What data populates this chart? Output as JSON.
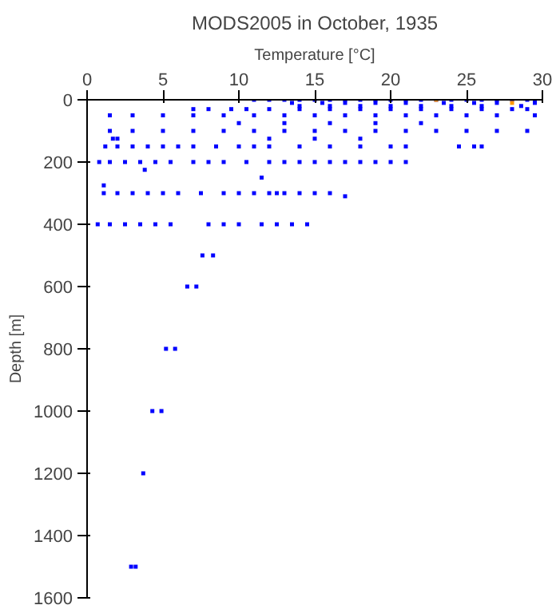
{
  "chart_data": {
    "type": "scatter",
    "title": "MODS2005 in October, 1935",
    "xlabel": "Temperature [°C]",
    "ylabel": "Depth [m]",
    "xlim": [
      0,
      30
    ],
    "xticks": [
      0,
      5,
      10,
      15,
      20,
      25,
      30
    ],
    "ylim": [
      1600,
      0
    ],
    "yticks": [
      0,
      200,
      400,
      600,
      800,
      1000,
      1200,
      1400,
      1600
    ],
    "grid": false,
    "marker": "square",
    "series": [
      {
        "color": "#0000ff",
        "x": [
          11,
          12,
          13,
          14,
          15,
          16,
          17,
          18,
          19,
          20,
          21,
          22,
          23,
          24,
          25,
          26,
          27,
          28,
          29,
          29.5
        ],
        "values": [
          0,
          0,
          0,
          0,
          0,
          0,
          0,
          0,
          0,
          0,
          0,
          0,
          0,
          0,
          0,
          0,
          0,
          0,
          0,
          0
        ]
      },
      {
        "color": "#0000ff",
        "x": [
          13.5,
          15.5,
          17,
          19,
          21,
          23.5,
          25.5,
          27,
          29.5
        ],
        "values": [
          10,
          10,
          10,
          10,
          10,
          10,
          10,
          10,
          10
        ]
      },
      {
        "color": "#0000ff",
        "x": [
          14,
          16,
          18,
          20,
          22,
          24,
          26,
          28.6
        ],
        "values": [
          20,
          20,
          20,
          20,
          20,
          20,
          20,
          20
        ]
      },
      {
        "color": "#0000ff",
        "x": [
          7,
          8,
          9.5,
          10.5,
          12,
          14,
          16,
          18,
          20,
          22,
          24,
          26,
          28,
          29
        ],
        "values": [
          30,
          30,
          30,
          30,
          30,
          30,
          30,
          30,
          30,
          30,
          30,
          30,
          30,
          30
        ]
      },
      {
        "color": "#0000ff",
        "x": [
          1.5,
          3,
          5,
          7,
          9,
          11,
          13,
          15,
          17,
          19,
          21,
          23,
          25,
          27,
          29.5
        ],
        "values": [
          50,
          50,
          50,
          50,
          50,
          50,
          50,
          50,
          50,
          50,
          50,
          50,
          50,
          50,
          50
        ]
      },
      {
        "color": "#0000ff",
        "x": [
          10,
          13,
          16,
          19,
          22
        ],
        "values": [
          75,
          75,
          75,
          75,
          75
        ]
      },
      {
        "color": "#0000ff",
        "x": [
          1.5,
          3,
          5,
          7,
          9,
          11,
          13,
          15,
          17,
          19,
          21,
          23,
          25,
          27,
          29
        ],
        "values": [
          100,
          100,
          100,
          100,
          100,
          100,
          100,
          100,
          100,
          100,
          100,
          100,
          100,
          100,
          100
        ]
      },
      {
        "color": "#0000ff",
        "x": [
          1.7,
          2,
          12,
          15,
          18
        ],
        "values": [
          125,
          125,
          125,
          125,
          125
        ]
      },
      {
        "color": "#0000ff",
        "x": [
          1.2,
          2,
          3,
          4,
          5,
          6,
          7,
          8.5,
          10,
          11,
          12,
          14,
          16,
          18,
          20,
          21,
          24.5,
          25.5,
          26
        ],
        "values": [
          150,
          150,
          150,
          150,
          150,
          150,
          150,
          150,
          150,
          150,
          150,
          150,
          150,
          150,
          150,
          150,
          150,
          150,
          150
        ]
      },
      {
        "color": "#0000ff",
        "x": [
          0.8,
          1.5,
          2.5,
          3.5,
          4.5,
          5.5,
          7,
          8,
          9,
          10.5,
          12,
          13,
          14,
          15,
          16,
          17,
          18,
          19,
          20,
          21
        ],
        "values": [
          200,
          200,
          200,
          200,
          200,
          200,
          200,
          200,
          200,
          200,
          200,
          200,
          200,
          200,
          200,
          200,
          200,
          200,
          200,
          200
        ]
      },
      {
        "color": "#0000ff",
        "x": [
          3.8,
          11.5,
          1.1
        ],
        "values": [
          225,
          250,
          275
        ]
      },
      {
        "color": "#0000ff",
        "x": [
          1.1,
          2,
          3,
          4,
          5,
          6,
          7.5,
          9,
          10,
          11,
          12,
          12.5,
          13,
          14,
          15,
          16
        ],
        "values": [
          300,
          300,
          300,
          300,
          300,
          300,
          300,
          300,
          300,
          300,
          300,
          300,
          300,
          300,
          300,
          300
        ]
      },
      {
        "color": "#0000ff",
        "x": [
          17
        ],
        "values": [
          310
        ]
      },
      {
        "color": "#0000ff",
        "x": [
          0.7,
          1.5,
          2.5,
          3.5,
          4.5,
          5.5,
          8,
          9,
          10,
          11.5,
          12.5,
          13.5,
          14.5
        ],
        "values": [
          400,
          400,
          400,
          400,
          400,
          400,
          400,
          400,
          400,
          400,
          400,
          400,
          400
        ]
      },
      {
        "color": "#0000ff",
        "x": [
          7.6,
          8.3
        ],
        "values": [
          500,
          500
        ]
      },
      {
        "color": "#0000ff",
        "x": [
          6.6,
          7.2
        ],
        "values": [
          600,
          600
        ]
      },
      {
        "color": "#0000ff",
        "x": [
          5.2,
          5.8
        ],
        "values": [
          800,
          800
        ]
      },
      {
        "color": "#0000ff",
        "x": [
          4.3,
          4.9
        ],
        "values": [
          1000,
          1000
        ]
      },
      {
        "color": "#0000ff",
        "x": [
          3.7
        ],
        "values": [
          1200
        ]
      },
      {
        "color": "#0000ff",
        "x": [
          2.9,
          3.2
        ],
        "values": [
          1500,
          1500
        ]
      },
      {
        "color": "#ff9900",
        "x": [
          23,
          28
        ],
        "values": [
          0,
          10
        ]
      }
    ]
  }
}
